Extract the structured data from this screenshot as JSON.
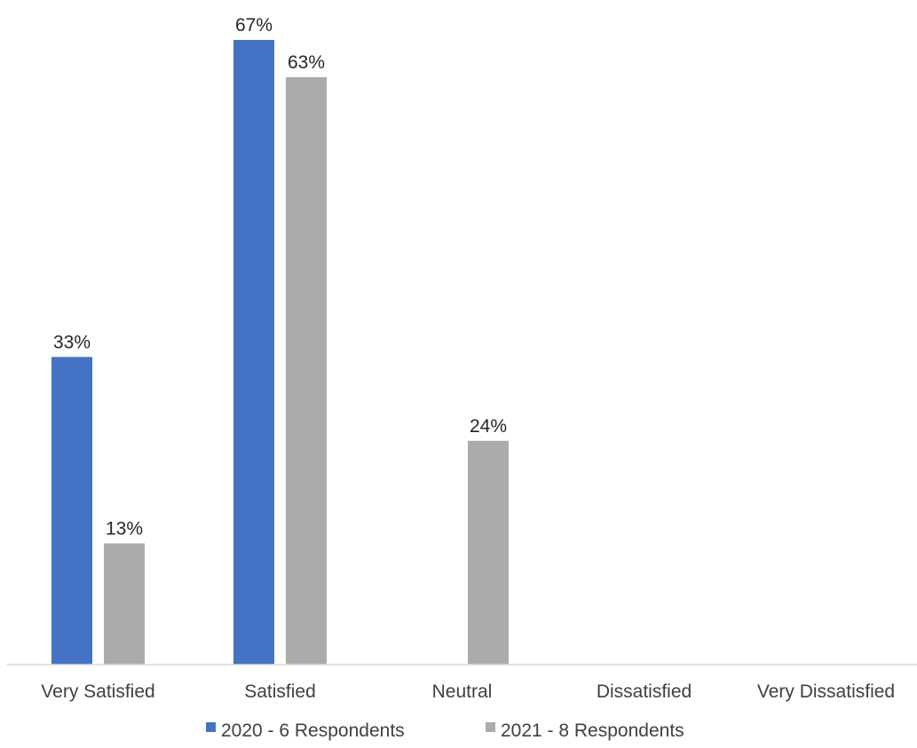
{
  "chart_data": {
    "type": "bar",
    "categories": [
      "Very Satisfied",
      "Satisfied",
      "Neutral",
      "Dissatisfied",
      "Very Dissatisfied"
    ],
    "series": [
      {
        "name": "2020 - 6 Respondents",
        "values": [
          33,
          67,
          0,
          0,
          0
        ],
        "labels": [
          "33%",
          "67%",
          "",
          "",
          ""
        ],
        "color": "#4472C4"
      },
      {
        "name": "2021 - 8 Respondents",
        "values": [
          13,
          63,
          24,
          0,
          0
        ],
        "labels": [
          "13%",
          "63%",
          "24%",
          "",
          ""
        ],
        "color": "#ADABAA"
      }
    ],
    "ylim": [
      0,
      67
    ],
    "value_unit": "%",
    "grid": false,
    "legend_position": "bottom",
    "axis_line_color": "#D9D9D9"
  }
}
